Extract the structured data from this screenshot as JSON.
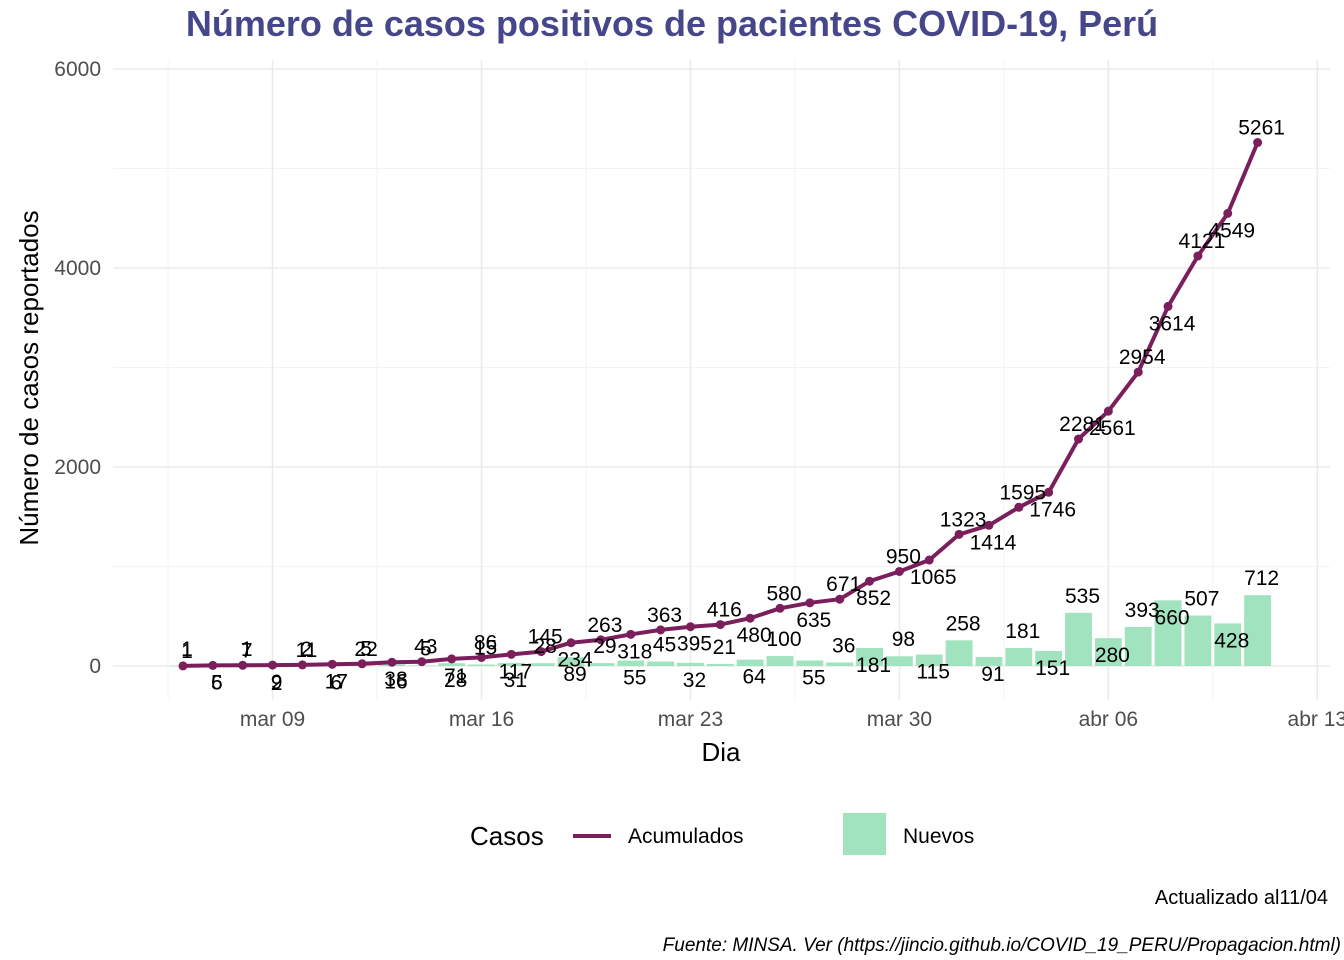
{
  "chart_data": {
    "type": "bar",
    "title": "Número de casos positivos de pacientes COVID-19, Perú",
    "xlabel": "Dia",
    "ylabel": "Número de casos reportados",
    "ylim": [
      0,
      6000
    ],
    "y_ticks": [
      0,
      2000,
      4000,
      6000
    ],
    "x_ticks": [
      "mar 09",
      "mar 16",
      "mar 23",
      "mar 30",
      "abr 06",
      "abr 13"
    ],
    "grid": true,
    "legend": {
      "title": "Casos",
      "position": "bottom",
      "entries": [
        "Acumulados",
        "Nuevos"
      ]
    },
    "colors": {
      "acumulados": "#7a1f5c",
      "nuevos": "#a1e3bf",
      "title": "#46478a"
    },
    "x": [
      "mar 06",
      "mar 07",
      "mar 08",
      "mar 09",
      "mar 10",
      "mar 11",
      "mar 12",
      "mar 13",
      "mar 14",
      "mar 15",
      "mar 16",
      "mar 17",
      "mar 18",
      "mar 19",
      "mar 20",
      "mar 21",
      "mar 22",
      "mar 23",
      "mar 24",
      "mar 25",
      "mar 26",
      "mar 27",
      "mar 28",
      "mar 29",
      "mar 30",
      "mar 31",
      "abr 01",
      "abr 02",
      "abr 03",
      "abr 04",
      "abr 05",
      "abr 06",
      "abr 07",
      "abr 08",
      "abr 09",
      "abr 10",
      "abr 11"
    ],
    "series": [
      {
        "name": "Acumulados",
        "type": "line",
        "values": [
          1,
          6,
          7,
          9,
          11,
          17,
          22,
          38,
          43,
          71,
          86,
          117,
          145,
          234,
          263,
          318,
          363,
          395,
          416,
          480,
          580,
          635,
          671,
          852,
          950,
          1065,
          1323,
          1414,
          1595,
          1746,
          2281,
          2561,
          2954,
          3614,
          4121,
          4549,
          5261
        ],
        "labels": [
          "1",
          "6",
          "7",
          "9",
          "11",
          "17",
          "22",
          "38",
          "43",
          "71",
          "86",
          "117",
          "145",
          "234",
          "263",
          "318",
          "363",
          "395",
          "416",
          "480",
          "580",
          "635",
          "671",
          "852",
          "950",
          "1065",
          "1323",
          "1414",
          "1595",
          "1746",
          "2281",
          "2561",
          "2954",
          "3614",
          "4121",
          "4549",
          "5261"
        ]
      },
      {
        "name": "Nuevos",
        "type": "bar",
        "values": [
          1,
          5,
          1,
          2,
          2,
          6,
          5,
          16,
          5,
          28,
          15,
          31,
          28,
          89,
          29,
          55,
          45,
          32,
          21,
          64,
          100,
          55,
          36,
          181,
          98,
          115,
          258,
          91,
          181,
          151,
          535,
          280,
          393,
          660,
          507,
          428,
          712
        ],
        "labels": [
          "1",
          "5",
          "1",
          "2",
          "2",
          "6",
          "5",
          "16",
          "5",
          "28",
          "15",
          "31",
          "28",
          "89",
          "29",
          "55",
          "45",
          "32",
          "21",
          "64",
          "100",
          "55",
          "36",
          "181",
          "98",
          "115",
          "258",
          "91",
          "181",
          "151",
          "535",
          "280",
          "393",
          "660",
          "507",
          "428",
          "712"
        ]
      }
    ]
  },
  "captions": {
    "updated": "Actualizado al11/04",
    "source": "Fuente: MINSA. Ver (https://jincio.github.io/COVID_19_PERU/Propagacion.html)"
  }
}
